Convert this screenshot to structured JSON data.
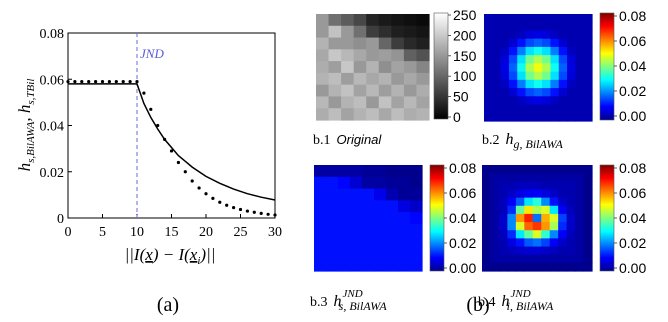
{
  "panel_a": {
    "label": "(a)",
    "jnd_text": "JND",
    "ylabel_main": "h",
    "ylabel_sub1": "s,BilAWA",
    "ylabel_sep": ", ",
    "ylabel_sub2": "s,TBil",
    "xlabel": "||I(x) − I(x_i)||"
  },
  "panel_b": {
    "label": "(b)",
    "images": [
      {
        "id": "b1",
        "caption_num": "b.1",
        "caption_text": "Original",
        "ticks": [
          "250",
          "200",
          "150",
          "100",
          "50",
          "0"
        ]
      },
      {
        "id": "b2",
        "caption_num": "b.2",
        "caption_main": "h",
        "caption_sub": "g, BilAWA",
        "ticks": [
          "0.08",
          "0.06",
          "0.04",
          "0.02",
          "0.00"
        ]
      },
      {
        "id": "b3",
        "caption_num": "b.3",
        "caption_main": "h",
        "caption_sub": "s, BilAWA",
        "caption_sup": "JND",
        "ticks": [
          "0.08",
          "0.06",
          "0.04",
          "0.02",
          "0.00"
        ]
      },
      {
        "id": "b4",
        "caption_num": "b.4",
        "caption_main": "h",
        "caption_sub": "i, BilAWA",
        "caption_sup": "JND",
        "ticks": [
          "0.08",
          "0.06",
          "0.04",
          "0.02",
          "0.00"
        ]
      }
    ]
  },
  "chart_data": [
    {
      "type": "line",
      "xlim": [
        0,
        30
      ],
      "ylim": [
        0,
        0.08
      ],
      "xticks": [
        0,
        5,
        10,
        15,
        20,
        25,
        30
      ],
      "yticks": [
        0,
        0.02,
        0.04,
        0.06,
        0.08
      ],
      "xtick_labels": [
        "0",
        "5",
        "10",
        "15",
        "20",
        "25",
        "30"
      ],
      "ytick_labels": [
        "0",
        "0.02",
        "0.04",
        "0.06",
        "0.08"
      ],
      "grid": false,
      "annotation": {
        "text": "JND",
        "x": 10
      },
      "series": [
        {
          "style": "solid",
          "x": [
            0,
            2,
            4,
            6,
            8,
            10,
            11,
            12,
            13,
            14,
            15,
            16,
            17,
            18,
            19,
            20,
            22,
            24,
            26,
            28,
            30
          ],
          "y": [
            0.058,
            0.058,
            0.058,
            0.058,
            0.058,
            0.058,
            0.0495,
            0.0435,
            0.0385,
            0.034,
            0.0305,
            0.027,
            0.0245,
            0.022,
            0.02,
            0.018,
            0.015,
            0.0125,
            0.0105,
            0.009,
            0.0078
          ]
        },
        {
          "style": "dotted",
          "x": [
            0,
            1,
            2,
            3,
            4,
            5,
            6,
            7,
            8,
            9,
            10,
            11,
            12,
            13,
            14,
            15,
            16,
            17,
            18,
            19,
            20,
            21,
            22,
            23,
            24,
            25,
            26,
            27,
            28,
            29,
            30
          ],
          "y": [
            0.059,
            0.059,
            0.059,
            0.059,
            0.059,
            0.059,
            0.059,
            0.059,
            0.059,
            0.059,
            0.059,
            0.054,
            0.047,
            0.04,
            0.034,
            0.029,
            0.024,
            0.02,
            0.016,
            0.013,
            0.0105,
            0.0085,
            0.0068,
            0.0055,
            0.0045,
            0.0037,
            0.003,
            0.0025,
            0.002,
            0.0016,
            0.0013
          ]
        }
      ]
    },
    {
      "type": "heatmap",
      "name": "Original",
      "colormap": "gray",
      "range": [
        0,
        250
      ],
      "rows": 9,
      "cols": 9,
      "values": [
        [
          150,
          110,
          90,
          70,
          35,
          25,
          20,
          15,
          10
        ],
        [
          150,
          190,
          150,
          110,
          60,
          45,
          30,
          25,
          20
        ],
        [
          175,
          150,
          150,
          140,
          150,
          100,
          60,
          40,
          30
        ],
        [
          165,
          195,
          180,
          165,
          150,
          155,
          145,
          95,
          80
        ],
        [
          170,
          155,
          195,
          150,
          175,
          140,
          160,
          150,
          130
        ],
        [
          175,
          185,
          155,
          180,
          165,
          175,
          150,
          165,
          150
        ],
        [
          150,
          175,
          190,
          160,
          180,
          155,
          175,
          150,
          170
        ],
        [
          180,
          150,
          175,
          185,
          150,
          190,
          160,
          180,
          160
        ],
        [
          170,
          185,
          160,
          175,
          185,
          165,
          185,
          170,
          175
        ]
      ]
    },
    {
      "type": "heatmap",
      "name": "h_g,BilAWA",
      "colormap": "jet",
      "range": [
        0,
        0.085
      ],
      "rows": 13,
      "cols": 13,
      "shape": "gaussian",
      "peak": 0.052,
      "sigma_cells": 2.1
    },
    {
      "type": "heatmap",
      "name": "h_s,BilAWA^JND",
      "colormap": "jet",
      "range": [
        0,
        0.085
      ],
      "rows": 9,
      "cols": 9,
      "values": [
        [
          0.003,
          0.003,
          0.003,
          0.003,
          0.002,
          0.002,
          0.001,
          0.001,
          0.001
        ],
        [
          0.012,
          0.012,
          0.011,
          0.007,
          0.003,
          0.003,
          0.002,
          0.002,
          0.001
        ],
        [
          0.012,
          0.012,
          0.012,
          0.012,
          0.012,
          0.009,
          0.004,
          0.002,
          0.002
        ],
        [
          0.012,
          0.012,
          0.012,
          0.012,
          0.012,
          0.012,
          0.012,
          0.008,
          0.006
        ],
        [
          0.012,
          0.012,
          0.012,
          0.012,
          0.012,
          0.012,
          0.012,
          0.012,
          0.011
        ],
        [
          0.012,
          0.012,
          0.012,
          0.012,
          0.012,
          0.012,
          0.012,
          0.012,
          0.012
        ],
        [
          0.012,
          0.012,
          0.012,
          0.012,
          0.012,
          0.012,
          0.012,
          0.012,
          0.012
        ],
        [
          0.012,
          0.012,
          0.012,
          0.012,
          0.012,
          0.012,
          0.012,
          0.012,
          0.012
        ],
        [
          0.012,
          0.012,
          0.012,
          0.012,
          0.012,
          0.012,
          0.012,
          0.012,
          0.012
        ]
      ]
    },
    {
      "type": "heatmap",
      "name": "h_i,BilAWA^JND",
      "colormap": "jet",
      "range": [
        0,
        0.085
      ],
      "rows": 13,
      "cols": 13,
      "values": [
        [
          0.001,
          0.001,
          0.001,
          0.001,
          0.001,
          0.001,
          0.001,
          0.001,
          0.001,
          0.001,
          0.001,
          0.001,
          0.001
        ],
        [
          0.001,
          0.003,
          0.003,
          0.003,
          0.003,
          0.003,
          0.003,
          0.003,
          0.003,
          0.003,
          0.003,
          0.003,
          0.001
        ],
        [
          0.001,
          0.003,
          0.004,
          0.004,
          0.005,
          0.005,
          0.005,
          0.004,
          0.004,
          0.004,
          0.004,
          0.003,
          0.001
        ],
        [
          0.001,
          0.003,
          0.004,
          0.006,
          0.008,
          0.01,
          0.01,
          0.008,
          0.006,
          0.004,
          0.004,
          0.003,
          0.001
        ],
        [
          0.001,
          0.003,
          0.005,
          0.01,
          0.018,
          0.03,
          0.035,
          0.022,
          0.012,
          0.006,
          0.004,
          0.003,
          0.001
        ],
        [
          0.001,
          0.003,
          0.005,
          0.014,
          0.04,
          0.055,
          0.046,
          0.05,
          0.03,
          0.01,
          0.005,
          0.003,
          0.001
        ],
        [
          0.001,
          0.003,
          0.006,
          0.022,
          0.062,
          0.072,
          0.02,
          0.06,
          0.05,
          0.016,
          0.006,
          0.003,
          0.001
        ],
        [
          0.001,
          0.003,
          0.006,
          0.022,
          0.05,
          0.066,
          0.07,
          0.062,
          0.046,
          0.014,
          0.006,
          0.003,
          0.001
        ],
        [
          0.001,
          0.003,
          0.005,
          0.014,
          0.03,
          0.04,
          0.05,
          0.036,
          0.022,
          0.01,
          0.005,
          0.003,
          0.001
        ],
        [
          0.001,
          0.003,
          0.004,
          0.008,
          0.012,
          0.018,
          0.02,
          0.016,
          0.01,
          0.006,
          0.004,
          0.003,
          0.001
        ],
        [
          0.001,
          0.003,
          0.004,
          0.005,
          0.006,
          0.007,
          0.007,
          0.006,
          0.005,
          0.004,
          0.004,
          0.003,
          0.001
        ],
        [
          0.001,
          0.003,
          0.003,
          0.003,
          0.003,
          0.003,
          0.003,
          0.003,
          0.003,
          0.003,
          0.003,
          0.003,
          0.001
        ],
        [
          0.001,
          0.001,
          0.001,
          0.001,
          0.001,
          0.001,
          0.001,
          0.001,
          0.001,
          0.001,
          0.001,
          0.001,
          0.001
        ]
      ]
    }
  ]
}
